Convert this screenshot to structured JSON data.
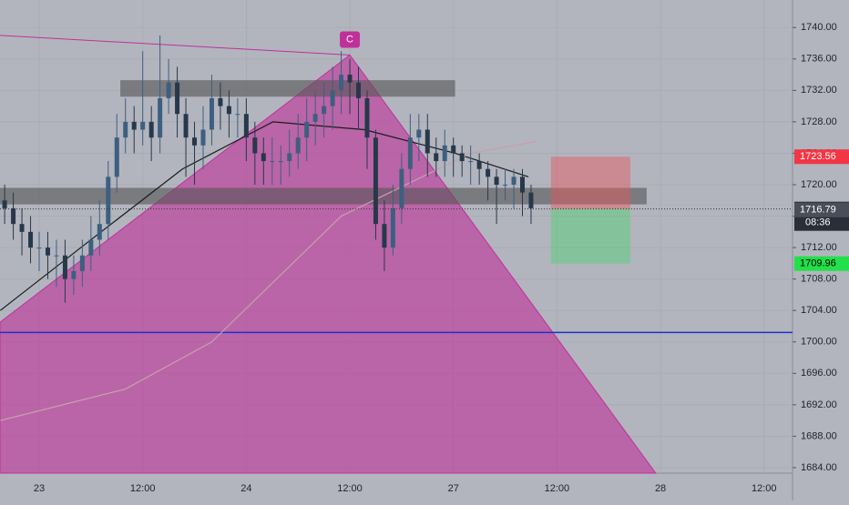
{
  "chart_data": {
    "type": "candlestick",
    "x": [
      -4,
      -3,
      -2,
      -1,
      0,
      1,
      2,
      3,
      4,
      5,
      6,
      7,
      8,
      9,
      10,
      11,
      12,
      13,
      14,
      15,
      16,
      17,
      18,
      19,
      20,
      21,
      22,
      23,
      24,
      25,
      26,
      27,
      28,
      29,
      30,
      31,
      32,
      33,
      34,
      35,
      36,
      37,
      38,
      39,
      40,
      41,
      42,
      43,
      44,
      45,
      46,
      47,
      48,
      49,
      50,
      51,
      52,
      53,
      54,
      55,
      56,
      57
    ],
    "open": [
      1718,
      1717,
      1715,
      1714,
      1712,
      1712,
      1711,
      1711,
      1708,
      1709,
      1711,
      1713,
      1715,
      1721,
      1726,
      1728,
      1727,
      1728,
      1726,
      1731,
      1733,
      1729,
      1726,
      1725,
      1727,
      1731,
      1730,
      1729,
      1729,
      1726,
      1724,
      1723,
      1723,
      1723,
      1724,
      1726,
      1728,
      1729,
      1730,
      1732,
      1734,
      1733,
      1731,
      1726,
      1715,
      1712,
      1717,
      1722,
      1726,
      1727,
      1724,
      1723,
      1725,
      1724,
      1723,
      1723,
      1722,
      1721,
      1720,
      1720,
      1721,
      1719
    ],
    "high": [
      1720,
      1719,
      1717,
      1716,
      1714,
      1714,
      1713,
      1713,
      1711,
      1713,
      1716,
      1718,
      1723,
      1729,
      1731,
      1730,
      1737,
      1730,
      1739,
      1736,
      1735,
      1731,
      1728,
      1730,
      1734,
      1733,
      1732,
      1731,
      1731,
      1728,
      1726,
      1726,
      1725,
      1727,
      1729,
      1731,
      1732,
      1733,
      1735,
      1737,
      1736,
      1735,
      1732,
      1727,
      1718,
      1720,
      1724,
      1729,
      1729,
      1729,
      1726,
      1727,
      1726,
      1725,
      1725,
      1724,
      1723,
      1722,
      1722,
      1722,
      1722,
      1720
    ],
    "low": [
      1715,
      1713,
      1711,
      1710,
      1709,
      1708,
      1707,
      1705,
      1706,
      1707,
      1709,
      1711,
      1713,
      1719,
      1724,
      1724,
      1725,
      1723,
      1724,
      1729,
      1726,
      1721,
      1720,
      1722,
      1725,
      1727,
      1726,
      1726,
      1723,
      1720,
      1720,
      1720,
      1720,
      1721,
      1722,
      1723,
      1725,
      1726,
      1727,
      1729,
      1729,
      1727,
      1722,
      1713,
      1709,
      1711,
      1715,
      1720,
      1723,
      1721,
      1721,
      1721,
      1721,
      1721,
      1720,
      1720,
      1718,
      1715,
      1718,
      1717,
      1716,
      1715
    ],
    "close": [
      1717,
      1715,
      1714,
      1712,
      1712,
      1711,
      1711,
      1708,
      1709,
      1711,
      1713,
      1715,
      1721,
      1726,
      1728,
      1727,
      1728,
      1726,
      1731,
      1733,
      1729,
      1726,
      1725,
      1727,
      1731,
      1730,
      1729,
      1729,
      1726,
      1724,
      1723,
      1723,
      1723,
      1724,
      1726,
      1728,
      1729,
      1730,
      1732,
      1734,
      1733,
      1731,
      1726,
      1715,
      1712,
      1717,
      1722,
      1726,
      1727,
      1724,
      1723,
      1725,
      1724,
      1723,
      1723,
      1722,
      1721,
      1720,
      1720,
      1721,
      1719,
      1717
    ],
    "up_color": "#3d5f80",
    "down_color": "#27384a",
    "lines": [
      {
        "color": "#1b1b1b",
        "x": [
          -4.5,
          6,
          16.6,
          27.1,
          37.7,
          48.2,
          56.7
        ],
        "values": [
          1704,
          1713,
          1722,
          1728,
          1727,
          1724,
          1721
        ]
      },
      {
        "color": "#c6a0ae",
        "x": [
          -4.5,
          10,
          20,
          35,
          50,
          57.6
        ],
        "values": [
          1690,
          1694,
          1700,
          1716,
          1724,
          1725.5
        ]
      }
    ],
    "pattern": {
      "label": "C",
      "color": "#c0309a",
      "x": [
        -4.54,
        36,
        71.45
      ],
      "values": [
        1702.5,
        1736.5,
        1683.3
      ],
      "top_x": [
        -4.54,
        36
      ],
      "top_values": [
        1739,
        1736.5
      ]
    },
    "zones": [
      {
        "x": [
          9.4,
          48.2
        ],
        "y": [
          1731.2,
          1733.3
        ]
      },
      {
        "x": [
          -4.54,
          70.4
        ],
        "y": [
          1717.5,
          1719.6
        ]
      }
    ],
    "hline": {
      "value": 1701.2,
      "color": "#1f2fd0"
    },
    "position": {
      "x": [
        59.3,
        68.5
      ],
      "entry": 1716.91,
      "stop": 1723.56,
      "target": 1709.96
    },
    "last_price": 1716.79,
    "countdown": "08:36",
    "xlim": [
      -4.54,
      87.3
    ],
    "ylim": [
      1683.3,
      1743.5
    ],
    "xticks": [
      {
        "value": 0,
        "label": "23"
      },
      {
        "value": 12,
        "label": "12:00"
      },
      {
        "value": 24,
        "label": "24"
      },
      {
        "value": 36,
        "label": "12:00"
      },
      {
        "value": 48,
        "label": "27"
      },
      {
        "value": 60,
        "label": "12:00"
      },
      {
        "value": 72,
        "label": "28"
      },
      {
        "value": 84,
        "label": "12:00"
      }
    ],
    "yticks": [
      {
        "value": 1740,
        "label": "1740.00"
      },
      {
        "value": 1736,
        "label": "1736.00"
      },
      {
        "value": 1732,
        "label": "1732.00"
      },
      {
        "value": 1728,
        "label": "1728.00"
      },
      {
        "value": 1724,
        "label": "1724.00"
      },
      {
        "value": 1720,
        "label": "1720.00"
      },
      {
        "value": 1716,
        "label": "1716.00"
      },
      {
        "value": 1712,
        "label": "1712.00"
      },
      {
        "value": 1708,
        "label": "1708.00"
      },
      {
        "value": 1704,
        "label": "1704.00"
      },
      {
        "value": 1700,
        "label": "1700.00"
      },
      {
        "value": 1696,
        "label": "1696.00"
      },
      {
        "value": 1692,
        "label": "1692.00"
      },
      {
        "value": 1688,
        "label": "1688.00"
      },
      {
        "value": 1684,
        "label": "1684.00"
      }
    ],
    "grid": true
  }
}
